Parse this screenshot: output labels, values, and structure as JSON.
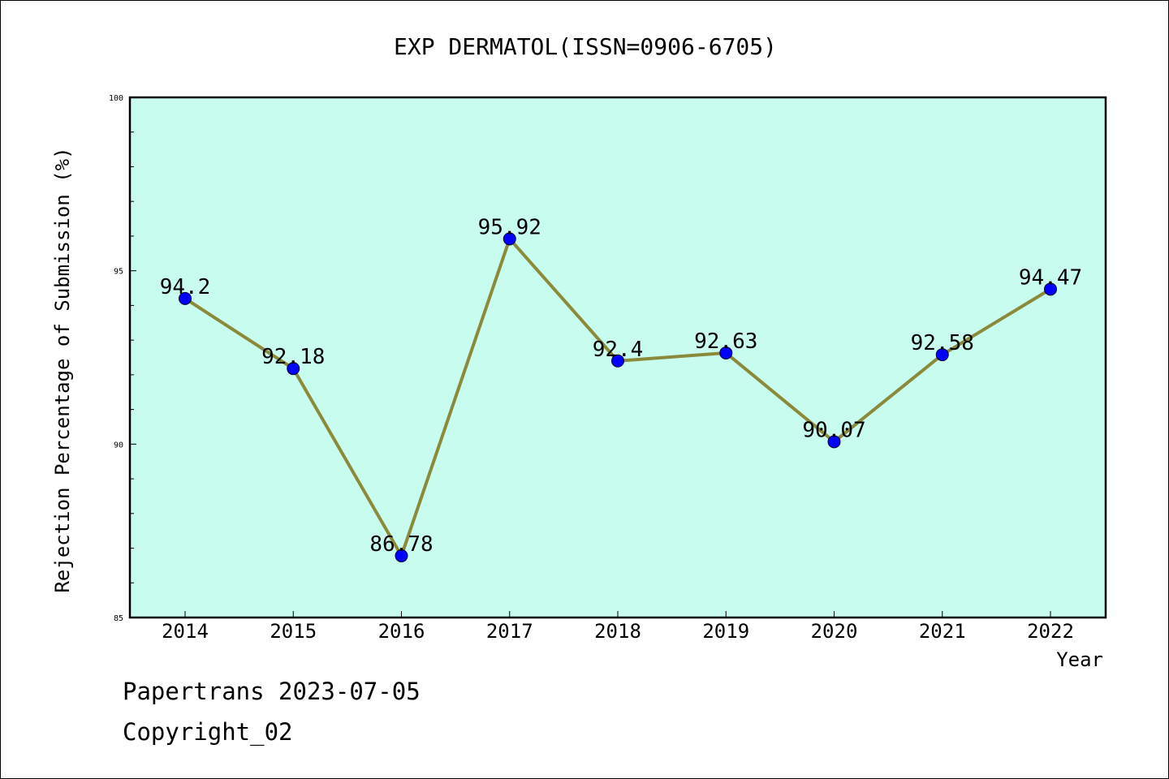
{
  "chart_data": {
    "type": "line",
    "title": "EXP DERMATOL(ISSN=0906-6705)",
    "xlabel": "Year",
    "ylabel": "Rejection Percentage of Submission (%)",
    "categories": [
      "2014",
      "2015",
      "2016",
      "2017",
      "2018",
      "2019",
      "2020",
      "2021",
      "2022"
    ],
    "values": [
      94.2,
      92.18,
      86.78,
      95.92,
      92.4,
      92.63,
      90.07,
      92.58,
      94.47
    ],
    "data_labels": [
      "94.2",
      "92.18",
      "86.78",
      "95.92",
      "92.4",
      "92.63",
      "90.07",
      "92.58",
      "94.47"
    ],
    "ylim": [
      85,
      100
    ],
    "yticks": [
      "85",
      "90",
      "95",
      "100"
    ],
    "grid": false,
    "colors": {
      "plot_background": "#c8fcee",
      "line": "#8b8a3a",
      "marker": "#0000ff"
    }
  },
  "footer": {
    "line1": "Papertrans 2023-07-05",
    "line2": "Copyright_02"
  }
}
